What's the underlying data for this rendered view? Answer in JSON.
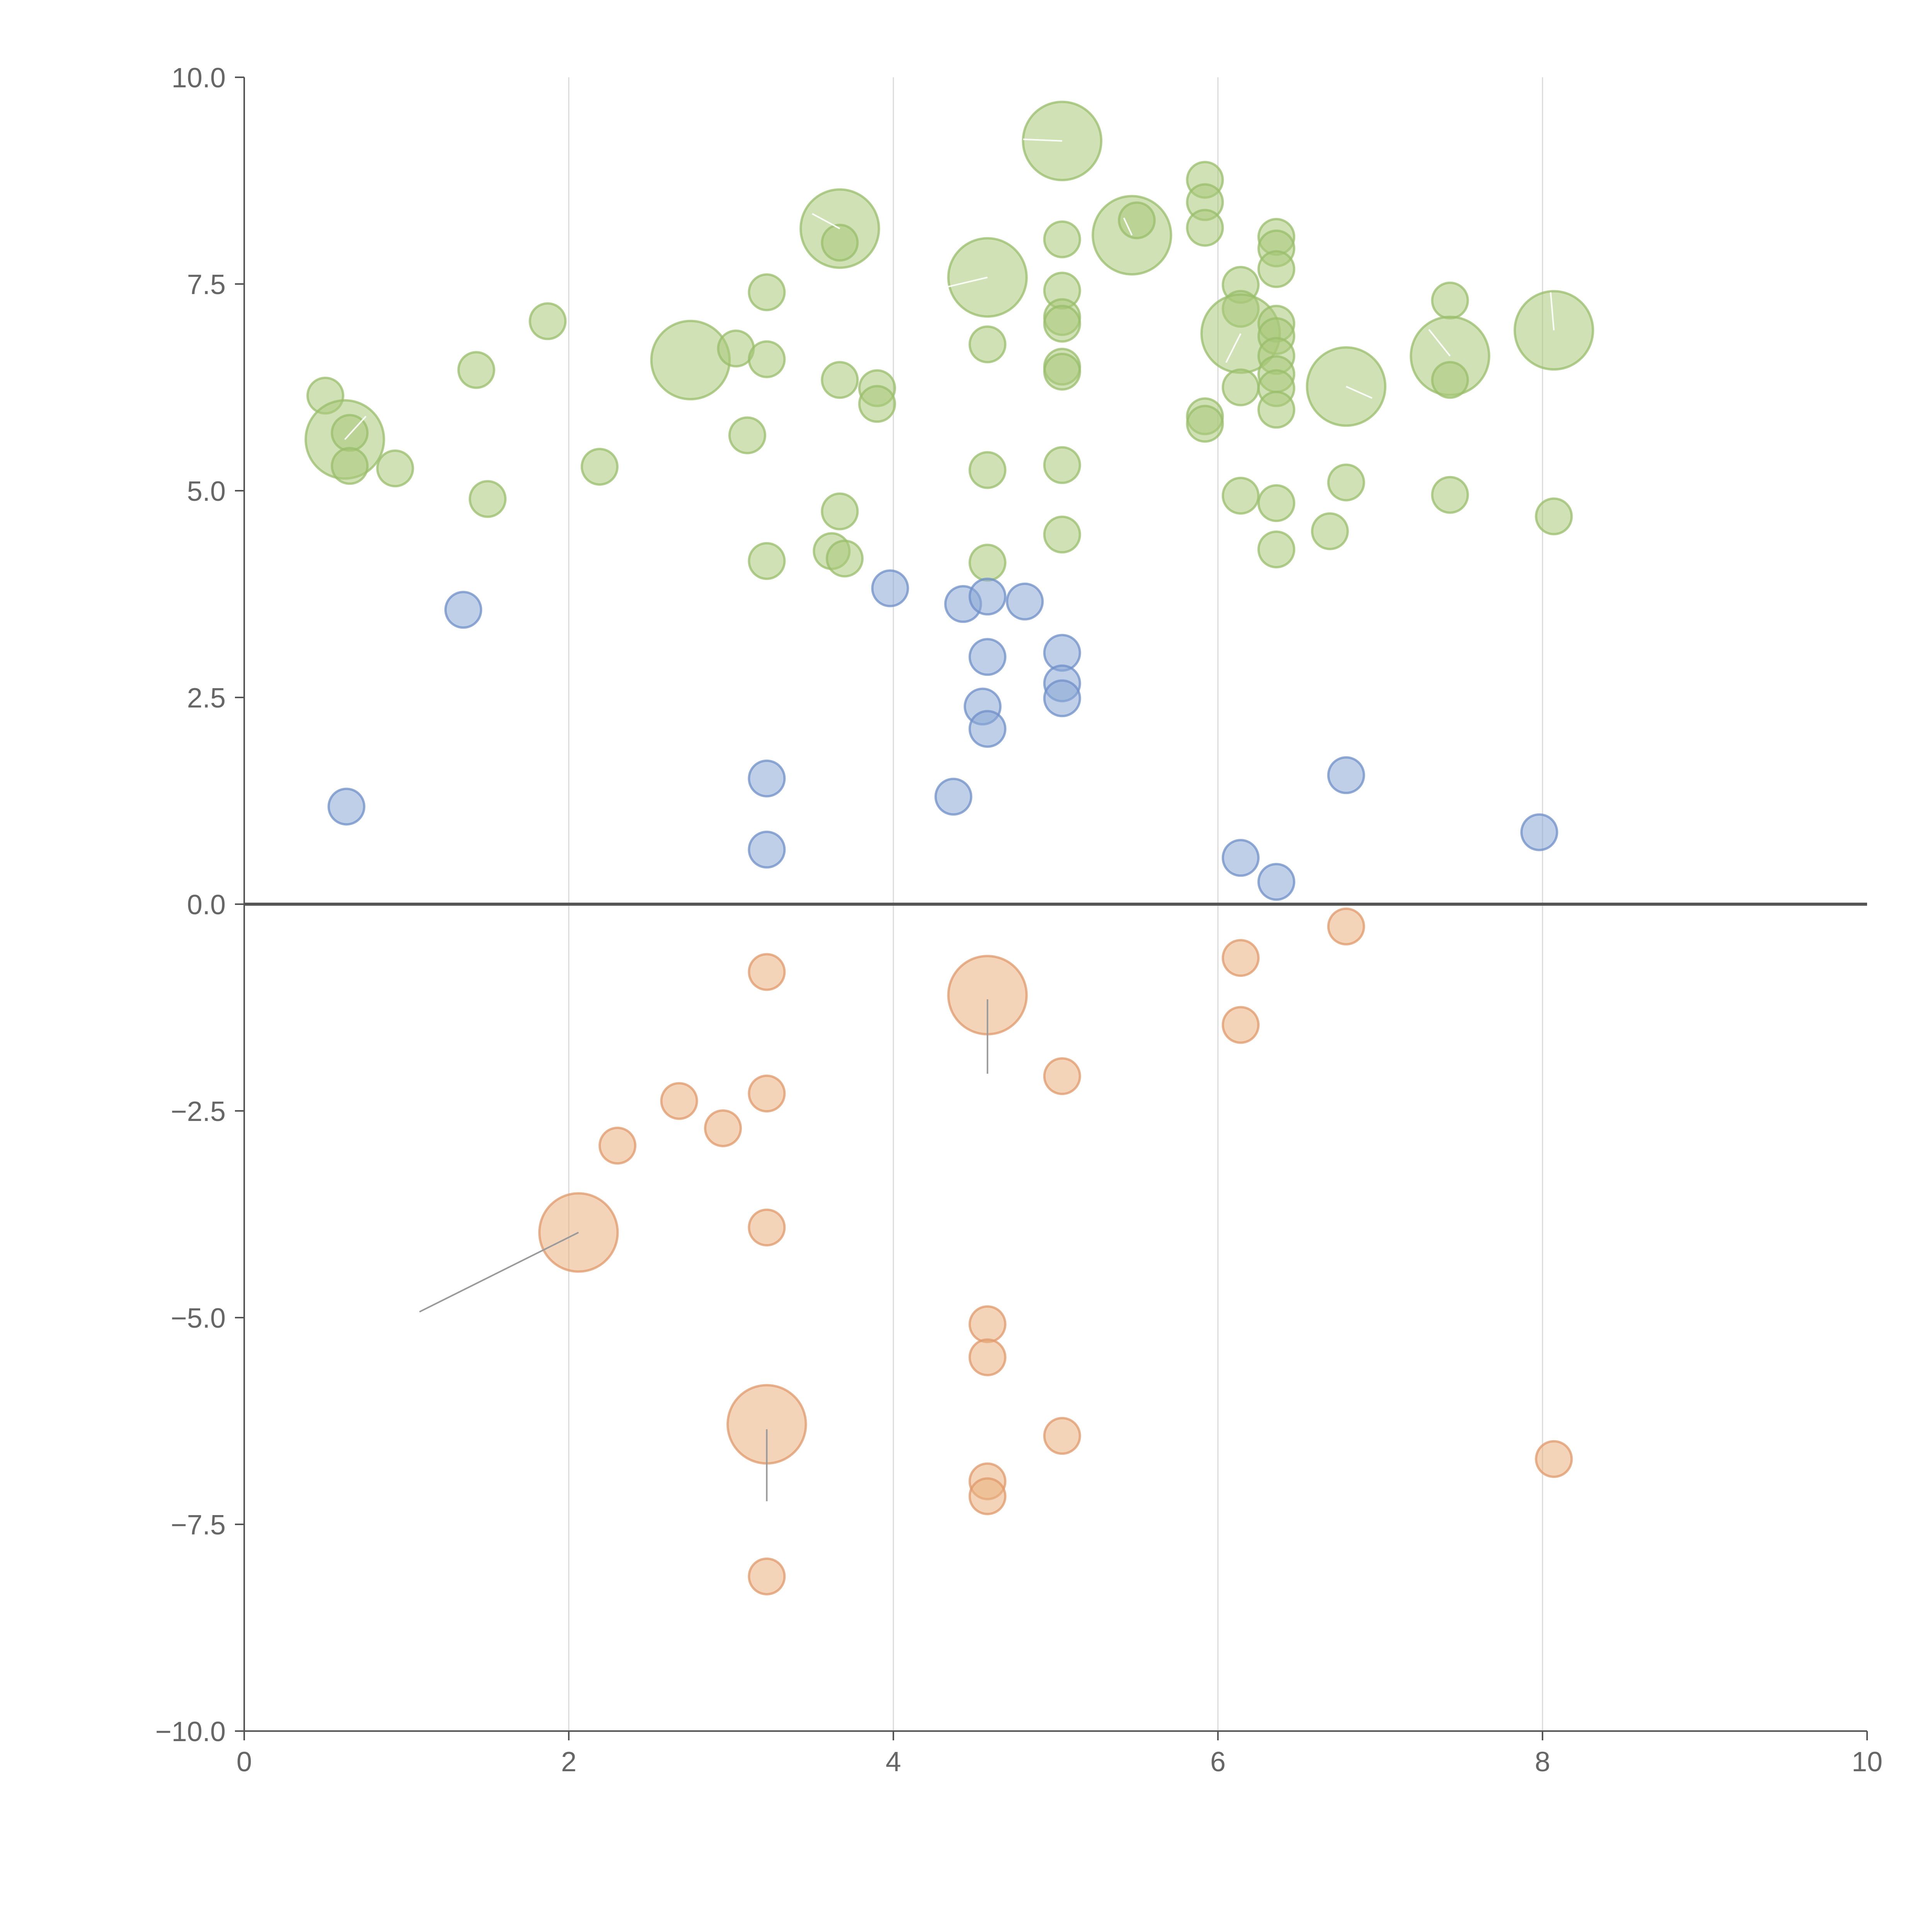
{
  "chart_data": {
    "type": "scatter",
    "title": "",
    "xlabel": "",
    "ylabel": "",
    "xlim": [
      0,
      10
    ],
    "ylim": [
      -10,
      10
    ],
    "grid": "vertical",
    "x_ticks": [
      0,
      2,
      4,
      6,
      8,
      10
    ],
    "x_tick_labels": [
      "0",
      "2",
      "4",
      "6",
      "8",
      "10"
    ],
    "y_ticks": [
      10,
      7.5,
      5,
      2.5,
      0,
      -2.5,
      -5,
      -7.5,
      -10
    ],
    "y_tick_labels": [
      "10.0",
      "7.5",
      "5.0",
      "2.5",
      "0.0",
      "−2.5",
      "−5.0",
      "−7.5",
      "−10.0"
    ],
    "series": [
      {
        "name": "green",
        "fill": "#a9c97a",
        "stroke": "#98bd6a",
        "points": [
          {
            "x": 0.5,
            "y": 6.15,
            "s": 1
          },
          {
            "x": 0.62,
            "y": 5.62,
            "s": 2.2
          },
          {
            "x": 0.65,
            "y": 5.7,
            "s": 1
          },
          {
            "x": 0.65,
            "y": 5.3,
            "s": 1
          },
          {
            "x": 0.93,
            "y": 5.27,
            "s": 1
          },
          {
            "x": 1.43,
            "y": 6.46,
            "s": 1
          },
          {
            "x": 1.5,
            "y": 4.9,
            "s": 1
          },
          {
            "x": 1.87,
            "y": 7.05,
            "s": 1
          },
          {
            "x": 2.19,
            "y": 5.29,
            "s": 1
          },
          {
            "x": 2.75,
            "y": 6.58,
            "s": 2.2
          },
          {
            "x": 3.03,
            "y": 6.72,
            "s": 1
          },
          {
            "x": 3.1,
            "y": 5.67,
            "s": 1
          },
          {
            "x": 3.22,
            "y": 7.4,
            "s": 1
          },
          {
            "x": 3.22,
            "y": 6.59,
            "s": 1
          },
          {
            "x": 3.22,
            "y": 4.15,
            "s": 1
          },
          {
            "x": 3.62,
            "y": 4.27,
            "s": 1
          },
          {
            "x": 3.67,
            "y": 6.34,
            "s": 1
          },
          {
            "x": 3.67,
            "y": 4.75,
            "s": 1
          },
          {
            "x": 3.67,
            "y": 8.17,
            "s": 2.2
          },
          {
            "x": 3.67,
            "y": 8.0,
            "s": 1
          },
          {
            "x": 3.7,
            "y": 4.18,
            "s": 1
          },
          {
            "x": 3.9,
            "y": 6.24,
            "s": 1
          },
          {
            "x": 3.9,
            "y": 6.05,
            "s": 1
          },
          {
            "x": 4.58,
            "y": 7.58,
            "s": 2.2
          },
          {
            "x": 4.58,
            "y": 6.77,
            "s": 1
          },
          {
            "x": 4.58,
            "y": 5.25,
            "s": 1
          },
          {
            "x": 4.58,
            "y": 4.13,
            "s": 1
          },
          {
            "x": 5.04,
            "y": 9.23,
            "s": 2.2
          },
          {
            "x": 5.04,
            "y": 8.04,
            "s": 1
          },
          {
            "x": 5.04,
            "y": 7.42,
            "s": 1
          },
          {
            "x": 5.04,
            "y": 7.1,
            "s": 1
          },
          {
            "x": 5.04,
            "y": 7.02,
            "s": 1
          },
          {
            "x": 5.04,
            "y": 6.5,
            "s": 1
          },
          {
            "x": 5.04,
            "y": 6.44,
            "s": 1
          },
          {
            "x": 5.04,
            "y": 5.31,
            "s": 1
          },
          {
            "x": 5.04,
            "y": 4.47,
            "s": 1
          },
          {
            "x": 5.47,
            "y": 8.09,
            "s": 2.2
          },
          {
            "x": 5.5,
            "y": 8.27,
            "s": 1
          },
          {
            "x": 5.92,
            "y": 8.76,
            "s": 1
          },
          {
            "x": 5.92,
            "y": 8.49,
            "s": 1
          },
          {
            "x": 5.92,
            "y": 8.18,
            "s": 1
          },
          {
            "x": 5.92,
            "y": 5.9,
            "s": 1
          },
          {
            "x": 5.92,
            "y": 5.81,
            "s": 1
          },
          {
            "x": 6.14,
            "y": 7.49,
            "s": 1
          },
          {
            "x": 6.14,
            "y": 7.2,
            "s": 1
          },
          {
            "x": 6.14,
            "y": 6.9,
            "s": 2.2
          },
          {
            "x": 6.14,
            "y": 6.25,
            "s": 1
          },
          {
            "x": 6.14,
            "y": 4.94,
            "s": 1
          },
          {
            "x": 6.36,
            "y": 8.07,
            "s": 1
          },
          {
            "x": 6.36,
            "y": 7.93,
            "s": 1
          },
          {
            "x": 6.36,
            "y": 7.68,
            "s": 1
          },
          {
            "x": 6.36,
            "y": 7.02,
            "s": 1
          },
          {
            "x": 6.36,
            "y": 6.87,
            "s": 1
          },
          {
            "x": 6.36,
            "y": 6.63,
            "s": 1
          },
          {
            "x": 6.36,
            "y": 6.41,
            "s": 1
          },
          {
            "x": 6.36,
            "y": 6.24,
            "s": 1
          },
          {
            "x": 6.36,
            "y": 5.98,
            "s": 1
          },
          {
            "x": 6.36,
            "y": 4.85,
            "s": 1
          },
          {
            "x": 6.36,
            "y": 4.29,
            "s": 1
          },
          {
            "x": 6.69,
            "y": 4.51,
            "s": 1
          },
          {
            "x": 6.79,
            "y": 6.26,
            "s": 2.2
          },
          {
            "x": 6.79,
            "y": 5.1,
            "s": 1
          },
          {
            "x": 7.43,
            "y": 7.3,
            "s": 1
          },
          {
            "x": 7.43,
            "y": 6.63,
            "s": 2.2
          },
          {
            "x": 7.43,
            "y": 6.34,
            "s": 1
          },
          {
            "x": 7.43,
            "y": 4.95,
            "s": 1
          },
          {
            "x": 8.07,
            "y": 6.94,
            "s": 2.2
          },
          {
            "x": 8.07,
            "y": 4.69,
            "s": 1
          }
        ]
      },
      {
        "name": "blue",
        "fill": "#8aa8d6",
        "stroke": "#6e8fc8",
        "points": [
          {
            "x": 0.63,
            "y": 1.18,
            "s": 1
          },
          {
            "x": 1.35,
            "y": 3.56,
            "s": 1
          },
          {
            "x": 3.22,
            "y": 1.52,
            "s": 1
          },
          {
            "x": 3.22,
            "y": 0.66,
            "s": 1
          },
          {
            "x": 3.98,
            "y": 3.82,
            "s": 1
          },
          {
            "x": 4.37,
            "y": 1.3,
            "s": 1
          },
          {
            "x": 4.43,
            "y": 3.63,
            "s": 1
          },
          {
            "x": 4.58,
            "y": 3.72,
            "s": 1
          },
          {
            "x": 4.58,
            "y": 2.99,
            "s": 1
          },
          {
            "x": 4.55,
            "y": 2.39,
            "s": 1
          },
          {
            "x": 4.58,
            "y": 2.12,
            "s": 1
          },
          {
            "x": 4.81,
            "y": 3.66,
            "s": 1
          },
          {
            "x": 5.04,
            "y": 3.04,
            "s": 1
          },
          {
            "x": 5.04,
            "y": 2.67,
            "s": 1
          },
          {
            "x": 5.04,
            "y": 2.49,
            "s": 1
          },
          {
            "x": 6.14,
            "y": 0.56,
            "s": 1
          },
          {
            "x": 6.36,
            "y": 0.27,
            "s": 1
          },
          {
            "x": 6.79,
            "y": 1.56,
            "s": 1
          },
          {
            "x": 7.98,
            "y": 0.87,
            "s": 1
          }
        ]
      },
      {
        "name": "orange",
        "fill": "#eab07f",
        "stroke": "#e0986a",
        "points": [
          {
            "x": 2.06,
            "y": -3.97,
            "s": 2.2
          },
          {
            "x": 2.3,
            "y": -2.92,
            "s": 1
          },
          {
            "x": 2.68,
            "y": -2.38,
            "s": 1
          },
          {
            "x": 2.95,
            "y": -2.71,
            "s": 1
          },
          {
            "x": 3.22,
            "y": -0.82,
            "s": 1
          },
          {
            "x": 3.22,
            "y": -2.29,
            "s": 1
          },
          {
            "x": 3.22,
            "y": -3.91,
            "s": 1
          },
          {
            "x": 3.22,
            "y": -6.29,
            "s": 2.2
          },
          {
            "x": 3.22,
            "y": -8.13,
            "s": 1
          },
          {
            "x": 4.58,
            "y": -1.1,
            "s": 2.2
          },
          {
            "x": 4.58,
            "y": -5.08,
            "s": 1
          },
          {
            "x": 4.58,
            "y": -5.48,
            "s": 1
          },
          {
            "x": 4.58,
            "y": -6.98,
            "s": 1
          },
          {
            "x": 4.58,
            "y": -7.16,
            "s": 1
          },
          {
            "x": 5.04,
            "y": -2.08,
            "s": 1
          },
          {
            "x": 5.04,
            "y": -6.43,
            "s": 1
          },
          {
            "x": 6.14,
            "y": -0.65,
            "s": 1
          },
          {
            "x": 6.14,
            "y": -1.46,
            "s": 1
          },
          {
            "x": 6.79,
            "y": -0.27,
            "s": 1
          },
          {
            "x": 8.07,
            "y": -6.71,
            "s": 1
          }
        ]
      }
    ],
    "leader_lines": [
      {
        "x1": 2.06,
        "y1": -3.97,
        "x2": 1.08,
        "y2": -4.93,
        "color": "gray"
      },
      {
        "x1": 3.22,
        "y1": -6.35,
        "x2": 3.22,
        "y2": -7.22,
        "color": "gray"
      },
      {
        "x1": 4.58,
        "y1": -1.15,
        "x2": 4.58,
        "y2": -2.05,
        "color": "gray"
      },
      {
        "x1": 0.62,
        "y1": 5.62,
        "x2": 0.75,
        "y2": 5.9,
        "color": "white"
      },
      {
        "x1": 3.67,
        "y1": 8.17,
        "x2": 3.5,
        "y2": 8.35,
        "color": "white"
      },
      {
        "x1": 4.58,
        "y1": 7.58,
        "x2": 4.3,
        "y2": 7.45,
        "color": "white"
      },
      {
        "x1": 5.04,
        "y1": 9.23,
        "x2": 4.8,
        "y2": 9.25,
        "color": "white"
      },
      {
        "x1": 5.47,
        "y1": 8.09,
        "x2": 5.42,
        "y2": 8.3,
        "color": "white"
      },
      {
        "x1": 6.14,
        "y1": 6.9,
        "x2": 6.05,
        "y2": 6.55,
        "color": "white"
      },
      {
        "x1": 6.79,
        "y1": 6.26,
        "x2": 6.95,
        "y2": 6.12,
        "color": "white"
      },
      {
        "x1": 7.43,
        "y1": 6.63,
        "x2": 7.3,
        "y2": 6.95,
        "color": "white"
      },
      {
        "x1": 8.07,
        "y1": 6.94,
        "x2": 8.05,
        "y2": 7.4,
        "color": "white"
      }
    ]
  }
}
